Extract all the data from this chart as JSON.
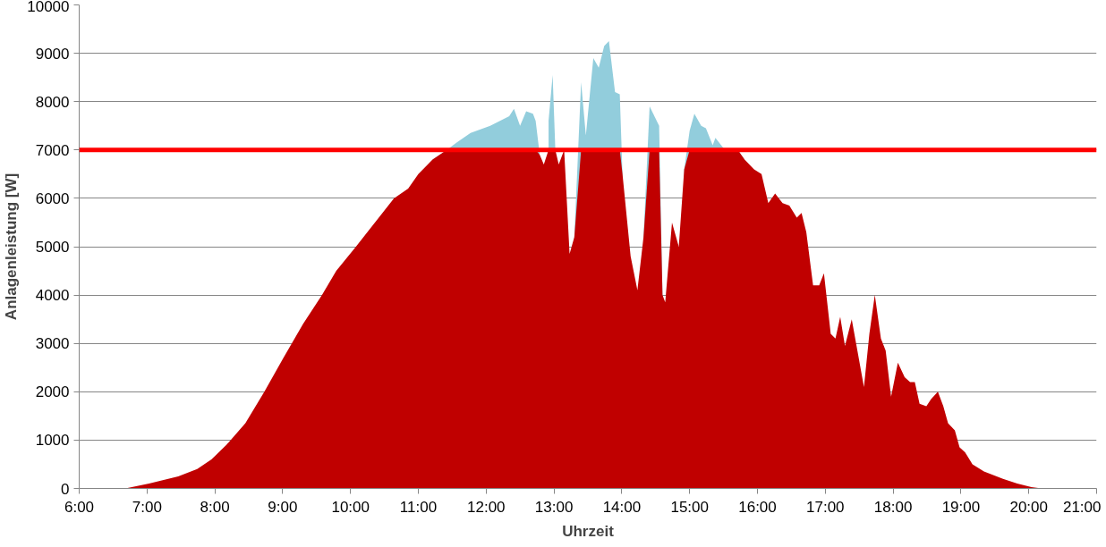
{
  "chart_data": {
    "type": "area",
    "xlabel": "Uhrzeit",
    "ylabel": "Anlagenleistung [W]",
    "x": [
      6.68,
      7.03,
      7.46,
      7.74,
      7.95,
      8.17,
      8.45,
      8.73,
      9.01,
      9.3,
      9.58,
      9.79,
      10.08,
      10.36,
      10.64,
      10.85,
      11.0,
      11.21,
      11.42,
      11.56,
      11.77,
      12.06,
      12.34,
      12.41,
      12.5,
      12.59,
      12.69,
      12.73,
      12.79,
      12.85,
      12.92,
      12.98,
      13.02,
      13.07,
      13.15,
      13.23,
      13.3,
      13.4,
      13.47,
      13.58,
      13.66,
      13.74,
      13.81,
      13.9,
      13.97,
      14.01,
      14.13,
      14.23,
      14.32,
      14.41,
      14.55,
      14.6,
      14.64,
      14.74,
      14.84,
      14.92,
      15.0,
      15.07,
      15.17,
      15.24,
      15.34,
      15.38,
      15.52,
      15.71,
      15.81,
      15.95,
      16.06,
      16.16,
      16.26,
      16.37,
      16.47,
      16.58,
      16.65,
      16.72,
      16.82,
      16.91,
      16.98,
      17.08,
      17.15,
      17.22,
      17.29,
      17.39,
      17.57,
      17.65,
      17.73,
      17.82,
      17.89,
      17.97,
      18.07,
      18.17,
      18.25,
      18.32,
      18.39,
      18.49,
      18.56,
      18.66,
      18.74,
      18.81,
      18.91,
      18.98,
      19.06,
      19.17,
      19.34,
      19.62,
      19.83,
      20.04,
      20.19
    ],
    "series": [
      {
        "color": "#92cddc",
        "values": [
          null,
          null,
          null,
          null,
          null,
          null,
          null,
          null,
          null,
          null,
          null,
          null,
          null,
          null,
          null,
          null,
          null,
          6800,
          7000,
          7150,
          7350,
          7500,
          7700,
          7850,
          7500,
          7800,
          7750,
          7600,
          6900,
          null,
          7600,
          8550,
          7000,
          null,
          null,
          null,
          5200,
          8400,
          7300,
          8900,
          8700,
          9150,
          9250,
          8200,
          8150,
          6500,
          null,
          null,
          5200,
          7900,
          7500,
          4000,
          null,
          null,
          null,
          6600,
          7400,
          7750,
          7500,
          7450,
          7100,
          7250,
          7000,
          7000,
          6800,
          null,
          null,
          null,
          null,
          null,
          null,
          null,
          null,
          null,
          null,
          null,
          null,
          null,
          null,
          null,
          null,
          null,
          null,
          null,
          null,
          null,
          null,
          null,
          null,
          null,
          null,
          null,
          null,
          null,
          null,
          null,
          null,
          null,
          null,
          null,
          null,
          null,
          null,
          null,
          null,
          null,
          null
        ]
      },
      {
        "color": "#c00000",
        "values": [
          0,
          100,
          250,
          400,
          600,
          900,
          1350,
          2000,
          2700,
          3400,
          4000,
          4500,
          5000,
          5500,
          6000,
          6200,
          6500,
          6800,
          7000,
          7000,
          7000,
          7000,
          7000,
          7000,
          7000,
          7000,
          7000,
          7000,
          6900,
          6700,
          7000,
          7000,
          7000,
          6700,
          7000,
          4850,
          5200,
          7000,
          7000,
          7000,
          7000,
          7000,
          7000,
          7000,
          7000,
          6500,
          4800,
          4100,
          5200,
          7000,
          7000,
          4000,
          3850,
          5500,
          5000,
          6600,
          7000,
          7000,
          7000,
          7000,
          7000,
          7000,
          7000,
          7000,
          6800,
          6600,
          6500,
          5900,
          6100,
          5900,
          5850,
          5600,
          5700,
          5300,
          4200,
          4200,
          4450,
          3200,
          3100,
          3550,
          2950,
          3500,
          2100,
          3200,
          4000,
          3100,
          2850,
          1900,
          2600,
          2300,
          2200,
          2200,
          1750,
          1700,
          1850,
          2000,
          1700,
          1350,
          1200,
          850,
          750,
          500,
          350,
          200,
          100,
          30,
          0
        ]
      }
    ],
    "ref_lines": [
      {
        "axis": "y",
        "value": 7000,
        "color": "#ff0000"
      }
    ],
    "xlim": [
      6,
      21
    ],
    "xticks": [
      {
        "value": 6,
        "label": "6:00"
      },
      {
        "value": 7,
        "label": "7:00"
      },
      {
        "value": 8,
        "label": "8:00"
      },
      {
        "value": 9,
        "label": "9:00"
      },
      {
        "value": 10,
        "label": "10:00"
      },
      {
        "value": 11,
        "label": "11:00"
      },
      {
        "value": 12,
        "label": "12:00"
      },
      {
        "value": 13,
        "label": "13:00"
      },
      {
        "value": 14,
        "label": "14:00"
      },
      {
        "value": 15,
        "label": "15:00"
      },
      {
        "value": 16,
        "label": "16:00"
      },
      {
        "value": 17,
        "label": "17:00"
      },
      {
        "value": 18,
        "label": "18:00"
      },
      {
        "value": 19,
        "label": "19:00"
      },
      {
        "value": 20,
        "label": "20:00"
      },
      {
        "value": 21,
        "label": "21:00"
      }
    ],
    "ylim": [
      0,
      10000
    ],
    "yticks": [
      0,
      1000,
      2000,
      3000,
      4000,
      5000,
      6000,
      7000,
      8000,
      9000,
      10000
    ],
    "grid": "y"
  }
}
